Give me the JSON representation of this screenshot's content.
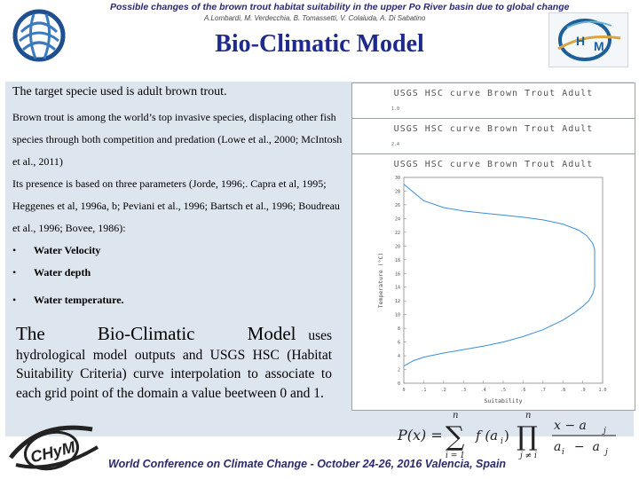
{
  "header": {
    "top_title": "Possible changes of the brown trout habitat suitability in the upper Po River basin due to global change",
    "authors": "A.Lombardi, M. Verdecchia, B. Tomassetti, V. Colaiuda, A. Di Sabatino",
    "slide_title": "Bio-Climatic Model"
  },
  "text": {
    "lead": "The target specie used is adult brown trout.",
    "para1": "Brown trout is among the world’s top invasive species, displacing other fish species through both competition and predation (Lowe et al., 2000; McIntosh et al., 2011)",
    "para2": "Its presence is based on three parameters (Jorde, 1996;. Capra et al, 1995;  Heggenes et al, 1996a, b; Peviani et al., 1996; Bartsch et al., 1996; Boudreau et al., 1996; Bovee, 1986):",
    "bullets": [
      "Water Velocity",
      "Water depth",
      "Water temperature."
    ],
    "model_first_words": "The Bio-Climatic Model",
    "model_rest": "uses hydrological model outputs and USGS HSC (Habitat Suitability Criteria) curve interpolation to associate to each grid point of the domain a value beetween 0 and 1."
  },
  "charts": {
    "card_title": "USGS HSC curve Brown Trout Adult",
    "card1_tick": "1.0",
    "card2_tick": "2.4"
  },
  "chart_data": {
    "type": "line",
    "title": "USGS HSC curve Brown Trout Adult",
    "xlabel": "Suitability",
    "ylabel": "Temperature (°C)",
    "xlim": [
      0,
      1.0
    ],
    "ylim": [
      0,
      30
    ],
    "x_ticks": [
      "0",
      ".1",
      ".2",
      ".3",
      ".4",
      ".5",
      ".6",
      ".7",
      ".8",
      ".9",
      "1.0"
    ],
    "y_ticks": [
      "0",
      "2",
      "4",
      "6",
      "8",
      "10",
      "12",
      "14",
      "16",
      "18",
      "20",
      "22",
      "24",
      "26",
      "28",
      "30"
    ],
    "series": [
      {
        "x": [
          0.0,
          0.05,
          0.1,
          0.2,
          0.3,
          0.4,
          0.5,
          0.6,
          0.7,
          0.8,
          0.86,
          0.9,
          0.93,
          0.95,
          0.96,
          0.96,
          0.95,
          0.92,
          0.88,
          0.8,
          0.7,
          0.6,
          0.5,
          0.4,
          0.3,
          0.2,
          0.1,
          0.05,
          0.0
        ],
        "y": [
          2.5,
          3.3,
          3.8,
          4.4,
          4.9,
          5.4,
          6.0,
          6.8,
          7.8,
          9.2,
          10.3,
          11.2,
          12.0,
          13.0,
          14.0,
          19.5,
          20.4,
          21.5,
          22.3,
          23.2,
          23.8,
          24.2,
          24.5,
          24.8,
          25.1,
          25.6,
          26.6,
          27.8,
          29.0
        ]
      }
    ],
    "grid": false
  },
  "formula": {
    "lhs": "P(x) =",
    "sum_top": "n",
    "sum_bottom": "i = 1",
    "term": "f (a",
    "term_sub": "i",
    "prod_top": "n",
    "prod_bottom": "j ≠ i",
    "num": "x  −  a",
    "num_sub": "j",
    "den": "a",
    "den_sub1": "i",
    "den_mid": "  −  a",
    "den_sub2": "j"
  },
  "footer": {
    "text": "World Conference on Climate Change - October 24-26, 2016 Valencia, Spain",
    "logo_text": "CHyM"
  },
  "colors": {
    "title_blue": "#1e2a8c",
    "header_text": "#2b2b6e",
    "panel_bg": "#dde5ef",
    "curve": "#3a8fd6"
  }
}
